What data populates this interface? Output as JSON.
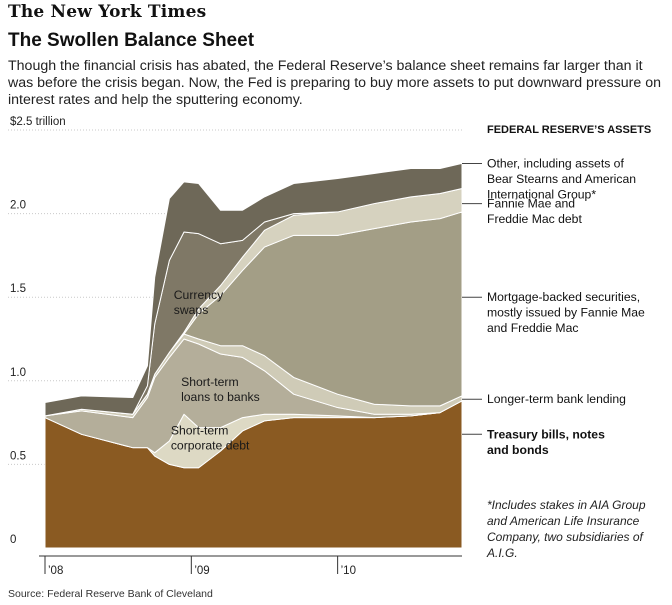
{
  "masthead": "The New York Times",
  "headline": "The Swollen Balance Sheet",
  "dek": "Though the financial crisis has abated, the Federal Reserve’s balance sheet remains far larger than it was before the crisis began. Now, the Fed is preparing to buy more assets to put downward pressure on interest rates and help the sputtering economy.",
  "source": "Source: Federal Reserve Bank of Cleveland",
  "footnote": "*Includes stakes in AIA Group and American Life Insurance Company, two subsidiaries of A.I.G.",
  "colors": {
    "treasury": "#8a5a22",
    "corporate_debt": "#ddd9c4",
    "short_term_loans": "#b4ae9a",
    "longer_term_lending": "#cfcbb7",
    "mbs": "#a39e86",
    "fannie_freddie": "#d6d2bf",
    "currency_swaps": "#7f7866",
    "other": "#6e6858"
  },
  "chart_data": {
    "type": "area",
    "stacked": true,
    "title": "FEDERAL RESERVE’S ASSETS",
    "y_unit_label": "$2.5 trillion",
    "ylim": [
      0,
      2.5
    ],
    "yticks": [
      {
        "value": 0,
        "label": "0"
      },
      {
        "value": 0.5,
        "label": "0.5"
      },
      {
        "value": 1.0,
        "label": "1.0"
      },
      {
        "value": 1.5,
        "label": "1.5"
      },
      {
        "value": 2.0,
        "label": "2.0"
      },
      {
        "value": 2.5,
        "label": "$2.5 trillion"
      }
    ],
    "xlim": [
      2008.0,
      2010.85
    ],
    "xticks": [
      {
        "value": 2008.0,
        "label": "’08"
      },
      {
        "value": 2009.0,
        "label": "’09"
      },
      {
        "value": 2010.0,
        "label": "’10"
      }
    ],
    "x": [
      2008.0,
      2008.25,
      2008.6,
      2008.7,
      2008.75,
      2008.85,
      2008.95,
      2009.05,
      2009.2,
      2009.35,
      2009.5,
      2009.7,
      2010.0,
      2010.25,
      2010.5,
      2010.7,
      2010.85
    ],
    "series": [
      {
        "key": "treasury",
        "name": "Treasury bills, notes and bonds",
        "values": [
          0.78,
          0.68,
          0.6,
          0.6,
          0.55,
          0.5,
          0.48,
          0.48,
          0.58,
          0.7,
          0.76,
          0.78,
          0.78,
          0.78,
          0.79,
          0.81,
          0.88
        ]
      },
      {
        "key": "corporate_debt",
        "name": "Short-term corporate debt",
        "values": [
          0,
          0,
          0,
          0,
          0.02,
          0.14,
          0.32,
          0.24,
          0.14,
          0.08,
          0.04,
          0.02,
          0.01,
          0,
          0,
          0,
          0
        ]
      },
      {
        "key": "short_term_loans",
        "name": "Short-term loans to banks",
        "values": [
          0.01,
          0.14,
          0.18,
          0.3,
          0.45,
          0.5,
          0.45,
          0.5,
          0.44,
          0.36,
          0.26,
          0.12,
          0.05,
          0.02,
          0.01,
          0,
          0
        ]
      },
      {
        "key": "longer_term_lending",
        "name": "Longer-term bank lending",
        "values": [
          0,
          0.01,
          0.02,
          0.02,
          0.02,
          0.03,
          0.03,
          0.03,
          0.05,
          0.07,
          0.09,
          0.1,
          0.08,
          0.06,
          0.05,
          0.04,
          0.03
        ]
      },
      {
        "key": "mbs",
        "name": "Mortgage-backed securities, mostly issued by Fannie Mae and Freddie Mac",
        "values": [
          0,
          0,
          0,
          0,
          0,
          0,
          0,
          0.15,
          0.3,
          0.45,
          0.65,
          0.85,
          0.95,
          1.05,
          1.1,
          1.12,
          1.1
        ]
      },
      {
        "key": "fannie_freddie",
        "name": "Fannie Mae and Freddie Mac debt",
        "values": [
          0,
          0,
          0,
          0,
          0,
          0,
          0.01,
          0.03,
          0.06,
          0.08,
          0.1,
          0.12,
          0.14,
          0.15,
          0.15,
          0.15,
          0.14
        ]
      },
      {
        "key": "currency_swaps",
        "name": "Currency swaps",
        "values": [
          0,
          0,
          0,
          0.05,
          0.3,
          0.55,
          0.6,
          0.45,
          0.25,
          0.1,
          0.05,
          0.01,
          0,
          0,
          0,
          0,
          0
        ]
      },
      {
        "key": "other",
        "name": "Other, including assets of Bear Stearns and American International Group*",
        "values": [
          0.08,
          0.08,
          0.1,
          0.12,
          0.28,
          0.37,
          0.3,
          0.3,
          0.2,
          0.18,
          0.15,
          0.18,
          0.2,
          0.18,
          0.17,
          0.15,
          0.15
        ]
      }
    ],
    "legend": [
      {
        "key": "other",
        "lines": [
          "Other, including assets of",
          "Bear Stearns and American",
          "International Group*"
        ],
        "value_y": 2.3,
        "bold": false
      },
      {
        "key": "fannie_freddie",
        "lines": [
          "Fannie Mae and",
          "Freddie Mac debt"
        ],
        "value_y": 2.06,
        "bold": false
      },
      {
        "key": "mbs",
        "lines": [
          "Mortgage-backed securities,",
          "mostly issued by Fannie Mae",
          "and Freddie Mac"
        ],
        "value_y": 1.5,
        "bold": false
      },
      {
        "key": "longer_term_lending",
        "lines": [
          "Longer-term bank lending"
        ],
        "value_y": 0.89,
        "bold": false
      },
      {
        "key": "treasury",
        "lines": [
          "Treasury bills, notes",
          "and bonds"
        ],
        "value_y": 0.68,
        "bold": true
      }
    ],
    "inline_labels": [
      {
        "key": "currency_swaps",
        "lines": [
          "Currency",
          "swaps"
        ],
        "x": 2008.88,
        "y": 1.49
      },
      {
        "key": "short_term_loans",
        "lines": [
          "Short-term",
          "loans to banks"
        ],
        "x": 2008.93,
        "y": 0.97
      },
      {
        "key": "corporate_debt",
        "lines": [
          "Short-term",
          "corporate debt"
        ],
        "x": 2008.86,
        "y": 0.68
      }
    ],
    "source": "Source: Federal Reserve Bank of Cleveland",
    "footnote": "*Includes stakes in AIA Group and American Life Insurance Company, two subsidiaries of A.I.G."
  }
}
